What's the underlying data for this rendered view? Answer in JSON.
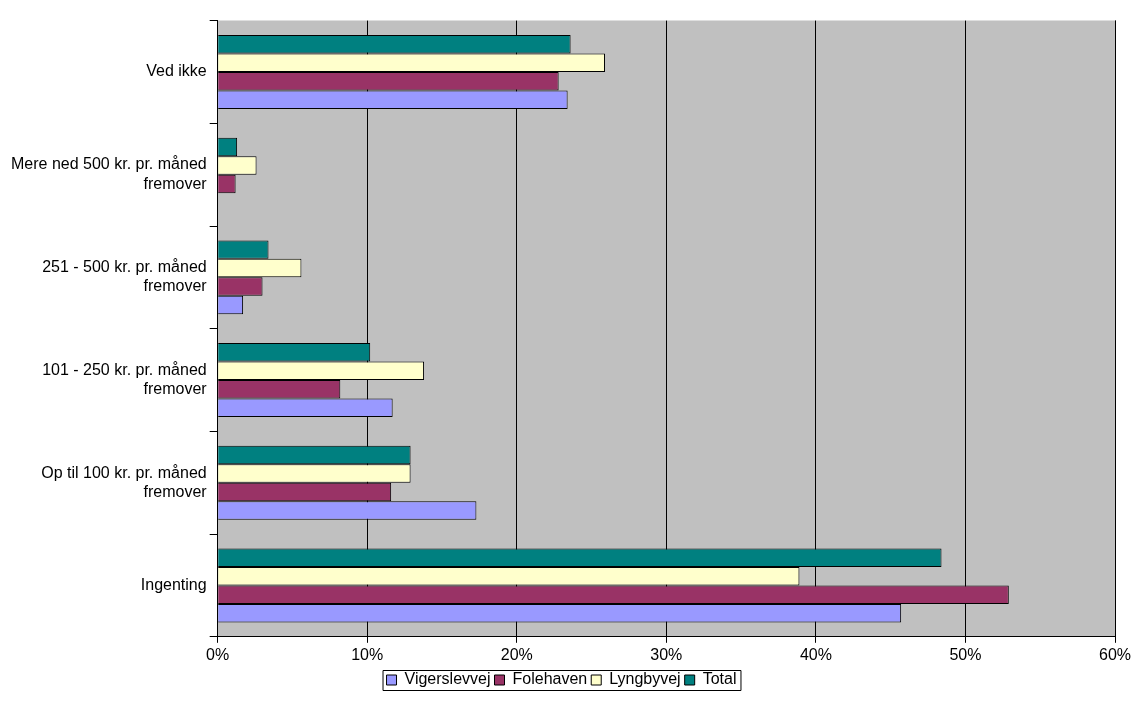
{
  "chart_data": {
    "type": "bar",
    "orientation": "horizontal",
    "categories": [
      "Ved ikke",
      "Mere ned 500 kr. pr. måned fremover",
      "251 - 500 kr. pr. måned fremover",
      "101 - 250 kr. pr. måned fremover",
      "Op til 100 kr. pr. måned fremover",
      "Ingenting"
    ],
    "series": [
      {
        "name": "Vigerslevvej",
        "color": "#9999ff",
        "values": [
          23.4,
          0,
          1.7,
          11.7,
          17.3,
          45.7
        ]
      },
      {
        "name": "Folehaven",
        "color": "#993366",
        "values": [
          22.8,
          1.2,
          3.0,
          8.2,
          11.6,
          52.9
        ]
      },
      {
        "name": "Lyngbyvej",
        "color": "#ffffcc",
        "values": [
          25.9,
          2.6,
          5.6,
          13.8,
          12.9,
          38.9
        ]
      },
      {
        "name": "Total",
        "color": "#008080",
        "values": [
          23.6,
          1.3,
          3.4,
          10.2,
          12.9,
          48.4
        ]
      }
    ],
    "xlim": [
      0,
      60
    ],
    "xticks": [
      {
        "value": 0,
        "label": "0%"
      },
      {
        "value": 10,
        "label": "10%"
      },
      {
        "value": 20,
        "label": "20%"
      },
      {
        "value": 30,
        "label": "30%"
      },
      {
        "value": 40,
        "label": "40%"
      },
      {
        "value": 50,
        "label": "50%"
      },
      {
        "value": 60,
        "label": "60%"
      }
    ],
    "grid": "x",
    "legend": "bottom"
  }
}
